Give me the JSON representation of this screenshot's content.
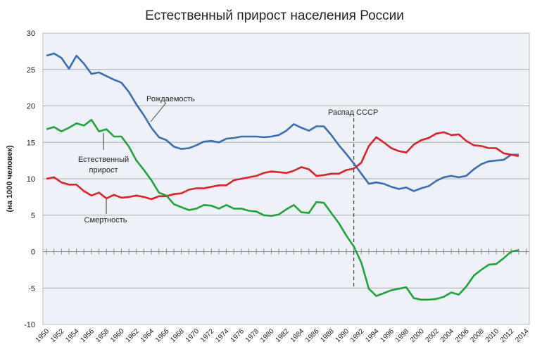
{
  "chart_data": {
    "type": "line",
    "title": "Естественный прирост населения России",
    "ylabel": "(на 1000 человек)",
    "xlabel": "",
    "ylim": [
      -10,
      30
    ],
    "xlim": [
      1950,
      2014
    ],
    "yticks": [
      -10,
      -5,
      0,
      5,
      10,
      15,
      20,
      25,
      30
    ],
    "yticklabels": [
      "-10",
      "-5",
      "0",
      "5",
      "10",
      "15",
      "20",
      "25",
      "30"
    ],
    "xticklabels": [
      "1950",
      "1952",
      "1954",
      "1956",
      "1958",
      "1960",
      "1962",
      "1964",
      "1966",
      "1968",
      "1970",
      "1972",
      "1974",
      "1976",
      "1978",
      "1980",
      "1982",
      "1984",
      "1986",
      "1988",
      "1990",
      "1992",
      "1994",
      "1996",
      "1998",
      "2000",
      "2002",
      "2004",
      "2006",
      "2008",
      "2010",
      "2012",
      "2014"
    ],
    "grid": true,
    "x": [
      1950,
      1951,
      1952,
      1953,
      1954,
      1955,
      1956,
      1957,
      1958,
      1959,
      1960,
      1961,
      1962,
      1963,
      1964,
      1965,
      1966,
      1967,
      1968,
      1969,
      1970,
      1971,
      1972,
      1973,
      1974,
      1975,
      1976,
      1977,
      1978,
      1979,
      1980,
      1981,
      1982,
      1983,
      1984,
      1985,
      1986,
      1987,
      1988,
      1989,
      1990,
      1991,
      1992,
      1993,
      1994,
      1995,
      1996,
      1997,
      1998,
      1999,
      2000,
      2001,
      2002,
      2003,
      2004,
      2005,
      2006,
      2007,
      2008,
      2009,
      2010,
      2011,
      2012,
      2013
    ],
    "series": [
      {
        "name": "Рождаемость",
        "color": "#3a6db3",
        "values": [
          26.9,
          27.2,
          26.6,
          25.1,
          26.9,
          25.8,
          24.4,
          24.6,
          24.1,
          23.6,
          23.2,
          21.9,
          20.2,
          18.7,
          17.0,
          15.7,
          15.3,
          14.4,
          14.1,
          14.2,
          14.6,
          15.1,
          15.2,
          15.0,
          15.5,
          15.6,
          15.8,
          15.8,
          15.8,
          15.7,
          15.8,
          16.0,
          16.6,
          17.5,
          17.0,
          16.6,
          17.2,
          17.2,
          16.0,
          14.6,
          13.4,
          12.1,
          10.7,
          9.3,
          9.5,
          9.3,
          8.9,
          8.6,
          8.8,
          8.3,
          8.7,
          9.0,
          9.7,
          10.2,
          10.4,
          10.2,
          10.4,
          11.3,
          12.0,
          12.4,
          12.5,
          12.6,
          13.3,
          13.3
        ]
      },
      {
        "name": "Смертность",
        "color": "#e0202a",
        "values": [
          10.0,
          10.2,
          9.5,
          9.2,
          9.2,
          8.3,
          7.7,
          8.1,
          7.3,
          7.8,
          7.4,
          7.5,
          7.7,
          7.5,
          7.2,
          7.6,
          7.6,
          7.9,
          8.0,
          8.5,
          8.7,
          8.7,
          8.9,
          9.1,
          9.1,
          9.8,
          10.0,
          10.2,
          10.4,
          10.8,
          11.0,
          10.9,
          10.8,
          11.1,
          11.6,
          11.3,
          10.4,
          10.5,
          10.7,
          10.7,
          11.2,
          11.4,
          12.2,
          14.5,
          15.7,
          15.0,
          14.2,
          13.8,
          13.6,
          14.7,
          15.3,
          15.6,
          16.2,
          16.4,
          16.0,
          16.1,
          15.2,
          14.6,
          14.5,
          14.2,
          14.2,
          13.5,
          13.3,
          13.1
        ]
      },
      {
        "name": "Естественный прирост",
        "color": "#1fa33a",
        "values": [
          16.8,
          17.1,
          16.5,
          17.0,
          17.6,
          17.3,
          18.1,
          16.5,
          16.8,
          15.8,
          15.8,
          14.4,
          12.5,
          11.2,
          9.8,
          8.1,
          7.7,
          6.5,
          6.1,
          5.7,
          5.9,
          6.4,
          6.3,
          5.9,
          6.4,
          5.9,
          5.9,
          5.6,
          5.5,
          5.0,
          4.9,
          5.1,
          5.8,
          6.4,
          5.4,
          5.3,
          6.8,
          6.7,
          5.3,
          3.9,
          2.2,
          0.7,
          -1.5,
          -5.1,
          -6.1,
          -5.7,
          -5.3,
          -5.1,
          -4.9,
          -6.4,
          -6.6,
          -6.6,
          -6.5,
          -6.2,
          -5.6,
          -5.9,
          -4.8,
          -3.3,
          -2.5,
          -1.8,
          -1.7,
          -0.9,
          0.0,
          0.2
        ]
      }
    ],
    "annotations": [
      {
        "text": "Рождаемость",
        "x": 1967
      },
      {
        "text": "Естественный",
        "x": 1957
      },
      {
        "text": "прирост",
        "x": 1957
      },
      {
        "text": "Смертность",
        "x": 1958
      },
      {
        "text": "Распад СССР",
        "x": 1991
      }
    ]
  }
}
